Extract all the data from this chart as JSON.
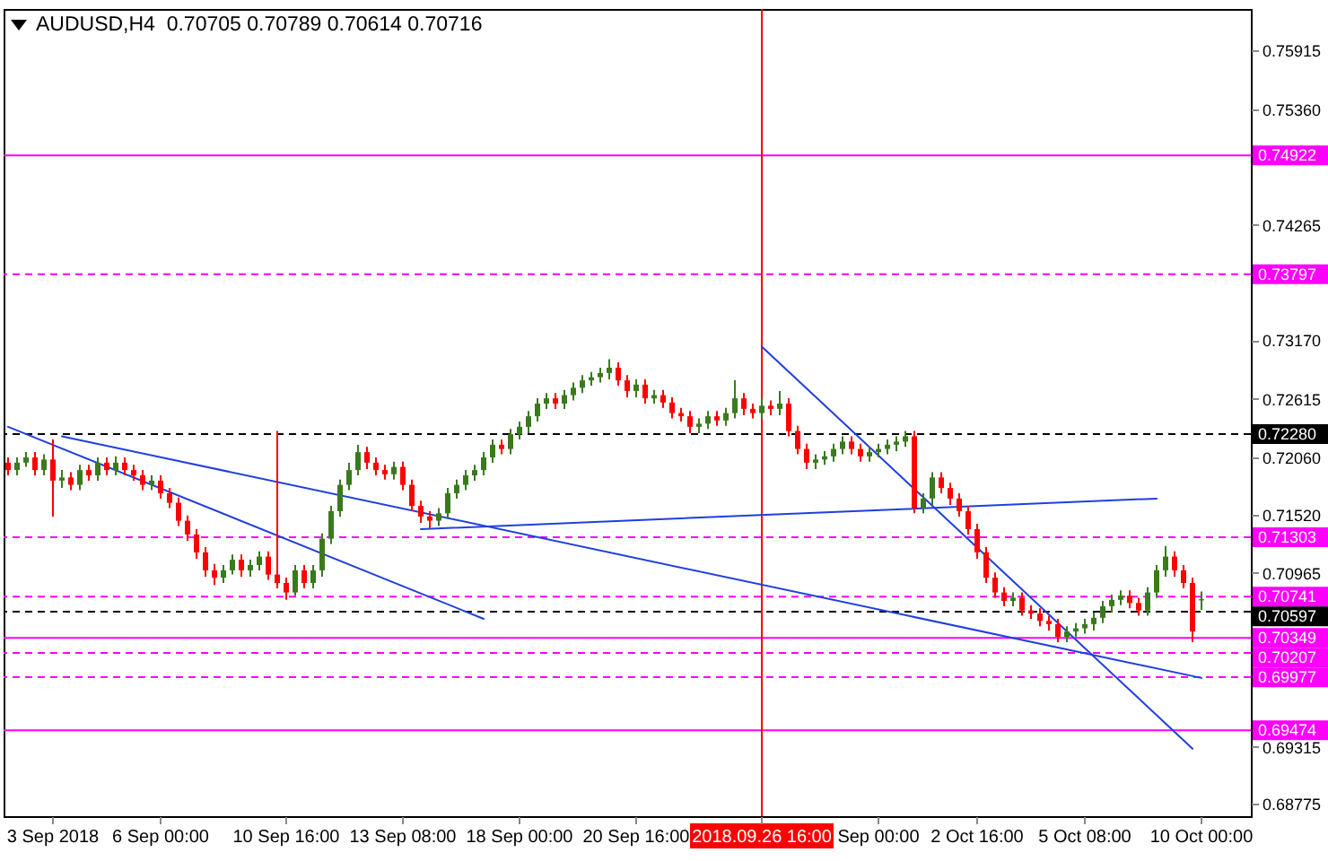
{
  "chart_data": {
    "type": "candlestick",
    "title": "AUDUSD,H4  0.70705 0.70789 0.70614 0.70716",
    "categories": [
      null,
      null,
      null,
      null,
      null,
      "3 Sep 2018",
      null,
      null,
      null,
      null,
      null,
      null,
      null,
      null,
      null,
      null,
      null,
      "6 Sep 00:00",
      null,
      null,
      null,
      null,
      null,
      null,
      null,
      null,
      null,
      null,
      null,
      null,
      null,
      "10 Sep 16:00",
      null,
      null,
      null,
      null,
      null,
      null,
      null,
      null,
      null,
      null,
      null,
      null,
      "13 Sep 08:00",
      null,
      null,
      null,
      null,
      null,
      null,
      null,
      null,
      null,
      null,
      null,
      null,
      "18 Sep 00:00",
      null,
      null,
      null,
      null,
      null,
      null,
      null,
      null,
      null,
      null,
      null,
      null,
      "20 Sep 16:00",
      null,
      null,
      null,
      null,
      null,
      null,
      null,
      null,
      null,
      null,
      null,
      null,
      null,
      "2018.09.26 16:00",
      null,
      null,
      null,
      null,
      null,
      null,
      null,
      null,
      null,
      null,
      null,
      null,
      "Sep 00:00",
      null,
      null,
      null,
      null,
      null,
      null,
      null,
      null,
      null,
      null,
      "2 Oct 16:00",
      null,
      null,
      null,
      null,
      null,
      null,
      null,
      null,
      null,
      null,
      null,
      "5 Oct 08:00",
      null,
      null,
      null,
      null,
      null,
      null,
      null,
      null,
      null,
      null,
      null,
      null,
      "10 Oct 00:00"
    ],
    "ohlc": [
      [
        0.7201,
        0.7206,
        0.7189,
        0.7194
      ],
      [
        0.7194,
        0.7206,
        0.7189,
        0.7201
      ],
      [
        0.7201,
        0.7211,
        0.7197,
        0.7206
      ],
      [
        0.7206,
        0.7211,
        0.7189,
        0.7194
      ],
      [
        0.7194,
        0.7209,
        0.7189,
        0.7204
      ],
      [
        0.7204,
        0.7223,
        0.715,
        0.7184
      ],
      [
        0.7184,
        0.7194,
        0.7177,
        0.7187
      ],
      [
        0.7187,
        0.7192,
        0.7175,
        0.718
      ],
      [
        0.718,
        0.7199,
        0.7175,
        0.7194
      ],
      [
        0.7194,
        0.7199,
        0.7184,
        0.7189
      ],
      [
        0.7189,
        0.7206,
        0.7184,
        0.7201
      ],
      [
        0.7201,
        0.7206,
        0.7189,
        0.7194
      ],
      [
        0.7194,
        0.7207,
        0.7189,
        0.7201
      ],
      [
        0.7201,
        0.7206,
        0.7189,
        0.7194
      ],
      [
        0.7194,
        0.7199,
        0.7184,
        0.7189
      ],
      [
        0.7189,
        0.7194,
        0.7175,
        0.718
      ],
      [
        0.718,
        0.7189,
        0.7175,
        0.7184
      ],
      [
        0.7184,
        0.7189,
        0.7167,
        0.7172
      ],
      [
        0.7172,
        0.7177,
        0.7158,
        0.7163
      ],
      [
        0.7163,
        0.7168,
        0.7141,
        0.7146
      ],
      [
        0.7146,
        0.7151,
        0.7127,
        0.7133
      ],
      [
        0.7133,
        0.7138,
        0.711,
        0.7116
      ],
      [
        0.7116,
        0.7121,
        0.7093,
        0.7099
      ],
      [
        0.7099,
        0.7105,
        0.7085,
        0.7092
      ],
      [
        0.7092,
        0.7104,
        0.7087,
        0.7099
      ],
      [
        0.7099,
        0.7114,
        0.7095,
        0.7109
      ],
      [
        0.7109,
        0.7114,
        0.7093,
        0.7099
      ],
      [
        0.7099,
        0.7109,
        0.7093,
        0.7104
      ],
      [
        0.7104,
        0.7117,
        0.7099,
        0.7112
      ],
      [
        0.7112,
        0.7117,
        0.709,
        0.7095
      ],
      [
        0.7095,
        0.7231,
        0.7082,
        0.7087
      ],
      [
        0.7087,
        0.7092,
        0.7071,
        0.7078
      ],
      [
        0.7078,
        0.7104,
        0.7075,
        0.7099
      ],
      [
        0.7099,
        0.7104,
        0.7082,
        0.7087
      ],
      [
        0.7087,
        0.7104,
        0.7082,
        0.7099
      ],
      [
        0.7099,
        0.7134,
        0.7093,
        0.7129
      ],
      [
        0.7129,
        0.716,
        0.7124,
        0.7155
      ],
      [
        0.7155,
        0.7185,
        0.715,
        0.718
      ],
      [
        0.718,
        0.7201,
        0.7175,
        0.7194
      ],
      [
        0.7194,
        0.7218,
        0.7189,
        0.7211
      ],
      [
        0.7211,
        0.7216,
        0.7195,
        0.7201
      ],
      [
        0.7201,
        0.7206,
        0.7189,
        0.7194
      ],
      [
        0.7194,
        0.7199,
        0.7185,
        0.719
      ],
      [
        0.719,
        0.7202,
        0.7185,
        0.7197
      ],
      [
        0.7197,
        0.7202,
        0.7175,
        0.718
      ],
      [
        0.718,
        0.7185,
        0.7155,
        0.716
      ],
      [
        0.716,
        0.7165,
        0.7144,
        0.715
      ],
      [
        0.715,
        0.7155,
        0.7139,
        0.7146
      ],
      [
        0.7146,
        0.7158,
        0.7141,
        0.7153
      ],
      [
        0.7153,
        0.7177,
        0.7148,
        0.7172
      ],
      [
        0.7172,
        0.7185,
        0.7167,
        0.718
      ],
      [
        0.718,
        0.7194,
        0.7175,
        0.7189
      ],
      [
        0.7189,
        0.7199,
        0.7184,
        0.7194
      ],
      [
        0.7194,
        0.7211,
        0.7189,
        0.7206
      ],
      [
        0.7206,
        0.7223,
        0.7201,
        0.7218
      ],
      [
        0.7218,
        0.7223,
        0.7209,
        0.7214
      ],
      [
        0.7214,
        0.7233,
        0.7209,
        0.7228
      ],
      [
        0.7228,
        0.724,
        0.7223,
        0.7235
      ],
      [
        0.7235,
        0.725,
        0.7229,
        0.7245
      ],
      [
        0.7245,
        0.7262,
        0.724,
        0.7257
      ],
      [
        0.7257,
        0.7267,
        0.7252,
        0.7262
      ],
      [
        0.7262,
        0.7267,
        0.7252,
        0.7257
      ],
      [
        0.7257,
        0.727,
        0.7252,
        0.7265
      ],
      [
        0.7265,
        0.7277,
        0.726,
        0.7272
      ],
      [
        0.7272,
        0.7284,
        0.7267,
        0.7279
      ],
      [
        0.7279,
        0.7287,
        0.7274,
        0.7282
      ],
      [
        0.7282,
        0.7291,
        0.7277,
        0.7286
      ],
      [
        0.7286,
        0.7299,
        0.728,
        0.7291
      ],
      [
        0.7291,
        0.7296,
        0.7274,
        0.7279
      ],
      [
        0.7279,
        0.7284,
        0.7263,
        0.7269
      ],
      [
        0.7269,
        0.728,
        0.7263,
        0.7275
      ],
      [
        0.7275,
        0.728,
        0.7257,
        0.7262
      ],
      [
        0.7262,
        0.727,
        0.7257,
        0.7265
      ],
      [
        0.7265,
        0.727,
        0.7253,
        0.7258
      ],
      [
        0.7258,
        0.7263,
        0.7243,
        0.7248
      ],
      [
        0.7248,
        0.7253,
        0.724,
        0.7245
      ],
      [
        0.7245,
        0.725,
        0.7229,
        0.7235
      ],
      [
        0.7235,
        0.7243,
        0.7229,
        0.7238
      ],
      [
        0.7238,
        0.725,
        0.7233,
        0.7245
      ],
      [
        0.7245,
        0.725,
        0.7236,
        0.7241
      ],
      [
        0.7241,
        0.7253,
        0.7236,
        0.7248
      ],
      [
        0.7248,
        0.7279,
        0.7243,
        0.7262
      ],
      [
        0.7262,
        0.7267,
        0.7246,
        0.7252
      ],
      [
        0.7252,
        0.7257,
        0.7243,
        0.7248
      ],
      [
        0.7248,
        0.7262,
        0.7243,
        0.7255
      ],
      [
        0.7255,
        0.726,
        0.7246,
        0.7252
      ],
      [
        0.7252,
        0.7269,
        0.7246,
        0.7257
      ],
      [
        0.7257,
        0.7262,
        0.7226,
        0.7231
      ],
      [
        0.7231,
        0.7236,
        0.7209,
        0.7214
      ],
      [
        0.7214,
        0.7219,
        0.7195,
        0.7201
      ],
      [
        0.7201,
        0.7209,
        0.7195,
        0.7204
      ],
      [
        0.7204,
        0.7212,
        0.7199,
        0.7207
      ],
      [
        0.7207,
        0.7219,
        0.7202,
        0.7214
      ],
      [
        0.7214,
        0.7226,
        0.7209,
        0.7221
      ],
      [
        0.7221,
        0.7226,
        0.7209,
        0.7214
      ],
      [
        0.7214,
        0.7219,
        0.7202,
        0.7207
      ],
      [
        0.7207,
        0.7216,
        0.7202,
        0.7211
      ],
      [
        0.7211,
        0.7219,
        0.7206,
        0.7214
      ],
      [
        0.7214,
        0.7223,
        0.7209,
        0.7218
      ],
      [
        0.7218,
        0.7226,
        0.7212,
        0.7221
      ],
      [
        0.7221,
        0.7231,
        0.7216,
        0.7226
      ],
      [
        0.7226,
        0.7231,
        0.7153,
        0.7158
      ],
      [
        0.7158,
        0.7172,
        0.7153,
        0.7167
      ],
      [
        0.7167,
        0.7192,
        0.7161,
        0.7187
      ],
      [
        0.7187,
        0.7192,
        0.7172,
        0.7177
      ],
      [
        0.7177,
        0.7182,
        0.7161,
        0.7167
      ],
      [
        0.7167,
        0.7172,
        0.715,
        0.7155
      ],
      [
        0.7155,
        0.716,
        0.7133,
        0.7138
      ],
      [
        0.7138,
        0.7143,
        0.711,
        0.7116
      ],
      [
        0.7116,
        0.7121,
        0.7087,
        0.7092
      ],
      [
        0.7092,
        0.7097,
        0.7073,
        0.7078
      ],
      [
        0.7078,
        0.7083,
        0.7065,
        0.707
      ],
      [
        0.707,
        0.7078,
        0.7065,
        0.7073
      ],
      [
        0.7073,
        0.7078,
        0.7056,
        0.7061
      ],
      [
        0.7061,
        0.7066,
        0.7053,
        0.7058
      ],
      [
        0.7058,
        0.7063,
        0.7046,
        0.7051
      ],
      [
        0.7051,
        0.7056,
        0.7042,
        0.7048
      ],
      [
        0.7048,
        0.7053,
        0.7031,
        0.7036
      ],
      [
        0.7036,
        0.7046,
        0.7031,
        0.7041
      ],
      [
        0.7041,
        0.7049,
        0.7036,
        0.7044
      ],
      [
        0.7044,
        0.7053,
        0.7039,
        0.7048
      ],
      [
        0.7048,
        0.7059,
        0.7042,
        0.7054
      ],
      [
        0.7054,
        0.707,
        0.7049,
        0.7065
      ],
      [
        0.7065,
        0.7076,
        0.7059,
        0.7071
      ],
      [
        0.7071,
        0.708,
        0.7066,
        0.7075
      ],
      [
        0.7075,
        0.708,
        0.7063,
        0.7068
      ],
      [
        0.7068,
        0.7073,
        0.7056,
        0.7061
      ],
      [
        0.7061,
        0.7083,
        0.7056,
        0.7078
      ],
      [
        0.7078,
        0.7104,
        0.7073,
        0.7099
      ],
      [
        0.7099,
        0.7122,
        0.7093,
        0.7112
      ],
      [
        0.7112,
        0.7117,
        0.7093,
        0.7099
      ],
      [
        0.7099,
        0.7104,
        0.7082,
        0.7087
      ],
      [
        0.7087,
        0.7092,
        0.7031,
        0.7041
      ],
      [
        0.70705,
        0.70789,
        0.70614,
        0.70716
      ]
    ],
    "colors": [
      "#ff0000",
      "#3a7a1e",
      "#3a7a1e",
      "#ff0000",
      "#3a7a1e",
      "#ff0000",
      "#3a7a1e",
      "#ff0000",
      "#3a7a1e",
      "#ff0000",
      "#3a7a1e",
      "#ff0000",
      "#3a7a1e",
      "#ff0000",
      "#ff0000",
      "#ff0000",
      "#3a7a1e",
      "#ff0000",
      "#ff0000",
      "#ff0000",
      "#ff0000",
      "#ff0000",
      "#ff0000",
      "#ff0000",
      "#3a7a1e",
      "#3a7a1e",
      "#ff0000",
      "#3a7a1e",
      "#3a7a1e",
      "#ff0000",
      "#ff0000",
      "#ff0000",
      "#3a7a1e",
      "#ff0000",
      "#3a7a1e",
      "#3a7a1e",
      "#3a7a1e",
      "#3a7a1e",
      "#3a7a1e",
      "#3a7a1e",
      "#ff0000",
      "#ff0000",
      "#ff0000",
      "#3a7a1e",
      "#ff0000",
      "#ff0000",
      "#ff0000",
      "#ff0000",
      "#3a7a1e",
      "#3a7a1e",
      "#3a7a1e",
      "#3a7a1e",
      "#3a7a1e",
      "#3a7a1e",
      "#3a7a1e",
      "#ff0000",
      "#3a7a1e",
      "#3a7a1e",
      "#3a7a1e",
      "#3a7a1e",
      "#3a7a1e",
      "#ff0000",
      "#3a7a1e",
      "#3a7a1e",
      "#3a7a1e",
      "#3a7a1e",
      "#3a7a1e",
      "#3a7a1e",
      "#ff0000",
      "#ff0000",
      "#3a7a1e",
      "#ff0000",
      "#3a7a1e",
      "#ff0000",
      "#ff0000",
      "#ff0000",
      "#ff0000",
      "#3a7a1e",
      "#3a7a1e",
      "#ff0000",
      "#3a7a1e",
      "#3a7a1e",
      "#ff0000",
      "#ff0000",
      "#3a7a1e",
      "#ff0000",
      "#3a7a1e",
      "#ff0000",
      "#ff0000",
      "#ff0000",
      "#3a7a1e",
      "#3a7a1e",
      "#3a7a1e",
      "#3a7a1e",
      "#ff0000",
      "#ff0000",
      "#3a7a1e",
      "#3a7a1e",
      "#3a7a1e",
      "#3a7a1e",
      "#3a7a1e",
      "#ff0000",
      "#3a7a1e",
      "#3a7a1e",
      "#ff0000",
      "#ff0000",
      "#ff0000",
      "#ff0000",
      "#ff0000",
      "#ff0000",
      "#ff0000",
      "#ff0000",
      "#3a7a1e",
      "#ff0000",
      "#ff0000",
      "#ff0000",
      "#ff0000",
      "#ff0000",
      "#3a7a1e",
      "#3a7a1e",
      "#3a7a1e",
      "#3a7a1e",
      "#3a7a1e",
      "#3a7a1e",
      "#3a7a1e",
      "#ff0000",
      "#ff0000",
      "#3a7a1e",
      "#3a7a1e",
      "#3a7a1e",
      "#ff0000",
      "#ff0000",
      "#ff0000",
      "#3a7a1e"
    ],
    "series": [
      {
        "type": "line",
        "color": "#1f3fe0",
        "values": [
          0.7235,
          null,
          null,
          null,
          null,
          null,
          null,
          null,
          null,
          null,
          null,
          null,
          null,
          null,
          null,
          null,
          null,
          null,
          null,
          null,
          null,
          null,
          null,
          null,
          null,
          null,
          null,
          null,
          null,
          null,
          null,
          null,
          null,
          null,
          null,
          null,
          null,
          null,
          null,
          null,
          null,
          null,
          null,
          null,
          null,
          null,
          null,
          null,
          null,
          null,
          null,
          null,
          null,
          0.7053,
          null,
          null,
          null,
          null,
          null,
          null,
          null,
          null,
          null,
          null,
          null,
          null,
          null,
          null,
          null,
          null,
          null,
          null,
          null,
          null,
          null,
          null,
          null,
          null,
          null,
          null,
          null,
          null,
          null,
          null,
          null,
          null,
          null,
          null,
          null,
          null,
          null,
          null,
          null,
          null,
          null,
          null,
          null,
          null,
          null,
          null,
          null,
          null,
          null,
          null,
          null,
          null,
          null,
          null,
          null,
          null,
          null,
          null,
          null,
          null,
          null,
          null,
          null,
          null,
          null,
          null,
          null,
          null,
          null,
          null,
          null,
          null,
          null,
          null,
          null,
          null,
          null,
          null,
          null,
          null
        ]
      },
      {
        "type": "line",
        "color": "#1f3fe0",
        "values": [
          null,
          null,
          null,
          null,
          null,
          null,
          0.7226,
          null,
          null,
          null,
          null,
          null,
          null,
          null,
          null,
          null,
          null,
          null,
          null,
          null,
          null,
          null,
          null,
          null,
          null,
          null,
          null,
          null,
          null,
          null,
          null,
          null,
          null,
          null,
          null,
          null,
          null,
          null,
          null,
          null,
          null,
          null,
          null,
          null,
          null,
          null,
          null,
          null,
          null,
          null,
          null,
          null,
          null,
          null,
          null,
          null,
          null,
          null,
          null,
          null,
          null,
          null,
          null,
          null,
          null,
          null,
          null,
          null,
          null,
          null,
          null,
          null,
          null,
          null,
          null,
          null,
          null,
          null,
          null,
          null,
          null,
          null,
          null,
          null,
          null,
          null,
          null,
          null,
          null,
          null,
          null,
          null,
          null,
          null,
          null,
          null,
          null,
          null,
          null,
          null,
          null,
          null,
          null,
          null,
          null,
          null,
          null,
          null,
          null,
          null,
          null,
          null,
          null,
          null,
          null,
          null,
          null,
          null,
          null,
          null,
          null,
          null,
          null,
          null,
          null,
          null,
          null,
          null,
          null,
          null,
          null,
          null,
          null,
          0.6997
        ]
      },
      {
        "type": "line",
        "color": "#1f3fe0",
        "values": [
          null,
          null,
          null,
          null,
          null,
          null,
          null,
          null,
          null,
          null,
          null,
          null,
          null,
          null,
          null,
          null,
          null,
          null,
          null,
          null,
          null,
          null,
          null,
          null,
          null,
          null,
          null,
          null,
          null,
          null,
          null,
          null,
          null,
          null,
          null,
          null,
          null,
          null,
          null,
          null,
          null,
          null,
          null,
          null,
          null,
          null,
          0.7138,
          null,
          null,
          null,
          null,
          null,
          null,
          null,
          null,
          null,
          null,
          null,
          null,
          null,
          null,
          null,
          null,
          null,
          null,
          null,
          null,
          null,
          null,
          null,
          null,
          null,
          null,
          null,
          null,
          null,
          null,
          null,
          null,
          null,
          null,
          null,
          null,
          null,
          null,
          null,
          null,
          null,
          null,
          null,
          null,
          null,
          null,
          null,
          null,
          null,
          null,
          null,
          null,
          null,
          null,
          null,
          null,
          null,
          null,
          null,
          null,
          null,
          null,
          null,
          null,
          null,
          null,
          null,
          null,
          null,
          null,
          null,
          null,
          null,
          null,
          null,
          null,
          null,
          null,
          null,
          null,
          null,
          0.7167,
          null,
          null,
          null,
          null,
          null
        ]
      },
      {
        "type": "line",
        "color": "#1f3fe0",
        "values": [
          null,
          null,
          null,
          null,
          null,
          null,
          null,
          null,
          null,
          null,
          null,
          null,
          null,
          null,
          null,
          null,
          null,
          null,
          null,
          null,
          null,
          null,
          null,
          null,
          null,
          null,
          null,
          null,
          null,
          null,
          null,
          null,
          null,
          null,
          null,
          null,
          null,
          null,
          null,
          null,
          null,
          null,
          null,
          null,
          null,
          null,
          null,
          null,
          null,
          null,
          null,
          null,
          null,
          null,
          null,
          null,
          null,
          null,
          null,
          null,
          null,
          null,
          null,
          null,
          null,
          null,
          null,
          null,
          null,
          null,
          null,
          null,
          null,
          null,
          null,
          null,
          null,
          null,
          null,
          null,
          null,
          null,
          null,
          null,
          0.7311,
          null,
          null,
          null,
          null,
          null,
          null,
          null,
          null,
          null,
          null,
          null,
          null,
          null,
          null,
          null,
          null,
          null,
          null,
          null,
          null,
          null,
          null,
          null,
          null,
          null,
          null,
          null,
          null,
          null,
          null,
          null,
          null,
          null,
          null,
          null,
          null,
          null,
          null,
          null,
          null,
          null,
          null,
          null,
          null,
          null,
          null,
          null,
          0.693,
          null
        ]
      }
    ],
    "ylim": [
      0.6866,
      0.7631
    ],
    "yticks": [
      0.75915,
      {
        "value": 0.7536,
        "label": "0.75360"
      },
      0.74265,
      {
        "value": 0.7317,
        "label": "0.73170"
      },
      0.72615,
      {
        "value": 0.7206,
        "label": "0.72060"
      },
      {
        "value": 0.7152,
        "label": "0.71520"
      },
      0.70965,
      0.69315,
      0.68775
    ],
    "ref_lines": [
      {
        "axis": "y",
        "value": 0.74922,
        "label": "0.74922",
        "color": "#ff00ff",
        "line_style": "solid"
      },
      {
        "axis": "y",
        "value": 0.73797,
        "label": "0.73797",
        "color": "#ff00ff",
        "line_style": "dashed"
      },
      {
        "axis": "y",
        "value": 0.7228,
        "label": "0.72280",
        "color": "#000000",
        "line_style": "dashed"
      },
      {
        "axis": "y",
        "value": 0.71303,
        "label": "0.71303",
        "color": "#ff00ff",
        "line_style": "dashed"
      },
      {
        "axis": "y",
        "value": 0.70741,
        "label": "0.70741",
        "color": "#ff00ff",
        "line_style": "dashed"
      },
      {
        "axis": "y",
        "value": 0.70597,
        "label": "0.70597",
        "color": "#000000",
        "line_style": "dashed"
      },
      {
        "axis": "y",
        "value": 0.70349,
        "label": "0.70349",
        "color": "#ff00ff",
        "line_style": "solid"
      },
      {
        "axis": "y",
        "value": 0.70207,
        "label": "0.70207",
        "color": "#ff00ff",
        "line_style": "dashed"
      },
      {
        "axis": "y",
        "value": 0.69977,
        "label": "0.69977",
        "color": "#ff00ff",
        "line_style": "dashed"
      },
      {
        "axis": "y",
        "value": 0.69474,
        "label": "0.69474",
        "color": "#ff00ff",
        "line_style": "solid"
      },
      {
        "axis": "x",
        "value": "2018.09.26 16:00",
        "color": "#ff0000",
        "line_style": "solid"
      }
    ]
  }
}
